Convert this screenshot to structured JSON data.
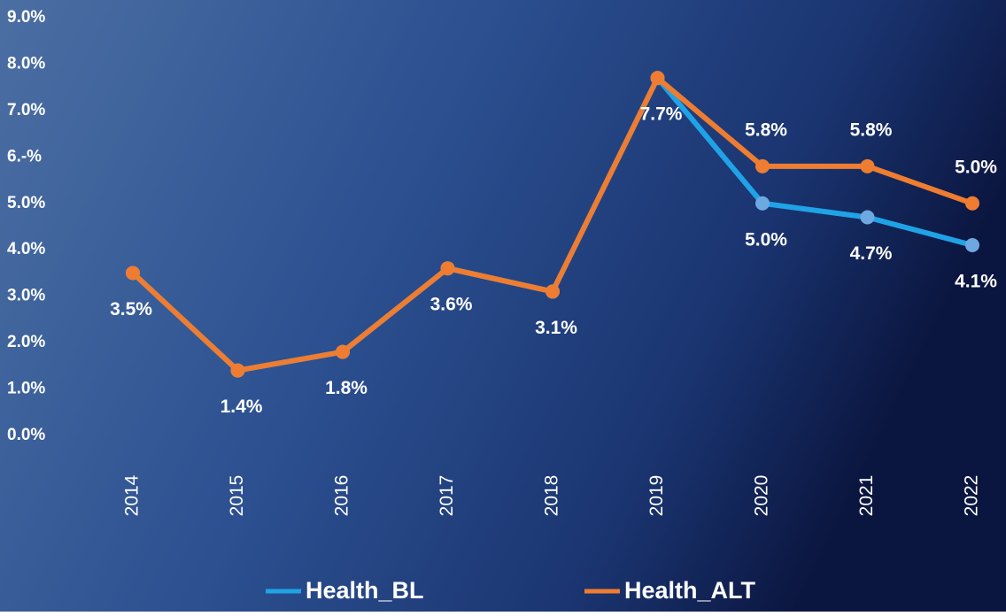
{
  "chart_data": {
    "type": "line",
    "categories": [
      "2014",
      "2015",
      "2016",
      "2017",
      "2018",
      "2019",
      "2020",
      "2021",
      "2022"
    ],
    "series": [
      {
        "name": "Health_BL",
        "color": "#1fa3e6",
        "marker_color": "#6ea8e0",
        "values": [
          3.5,
          1.4,
          1.8,
          3.6,
          3.1,
          7.7,
          5.0,
          4.7,
          4.1
        ],
        "value_labels": [
          "3.5%",
          "1.4%",
          "1.8%",
          "3.6%",
          "3.1%",
          "7.7%",
          "5.0%",
          "4.7%",
          "4.1%"
        ]
      },
      {
        "name": "Health_ALT",
        "color": "#ee7d31",
        "marker_color": "#ee7d31",
        "values": [
          3.5,
          1.4,
          1.8,
          3.6,
          3.1,
          7.7,
          5.8,
          5.8,
          5.0
        ],
        "value_labels": [
          null,
          null,
          null,
          null,
          null,
          null,
          "5.8%",
          "5.8%",
          "5.0%"
        ]
      }
    ],
    "ylim": [
      0,
      9
    ],
    "yticks": [
      {
        "value": 0,
        "label": "0.0%"
      },
      {
        "value": 1,
        "label": "1.0%"
      },
      {
        "value": 2,
        "label": "2.0%"
      },
      {
        "value": 3,
        "label": "3.0%"
      },
      {
        "value": 4,
        "label": "4.0%"
      },
      {
        "value": 5,
        "label": "5.0%"
      },
      {
        "value": 6,
        "label": "6.-%"
      },
      {
        "value": 7,
        "label": "7.0%"
      },
      {
        "value": 8,
        "label": "8.0%"
      },
      {
        "value": 9,
        "label": "9.0%"
      }
    ],
    "grid": false
  }
}
